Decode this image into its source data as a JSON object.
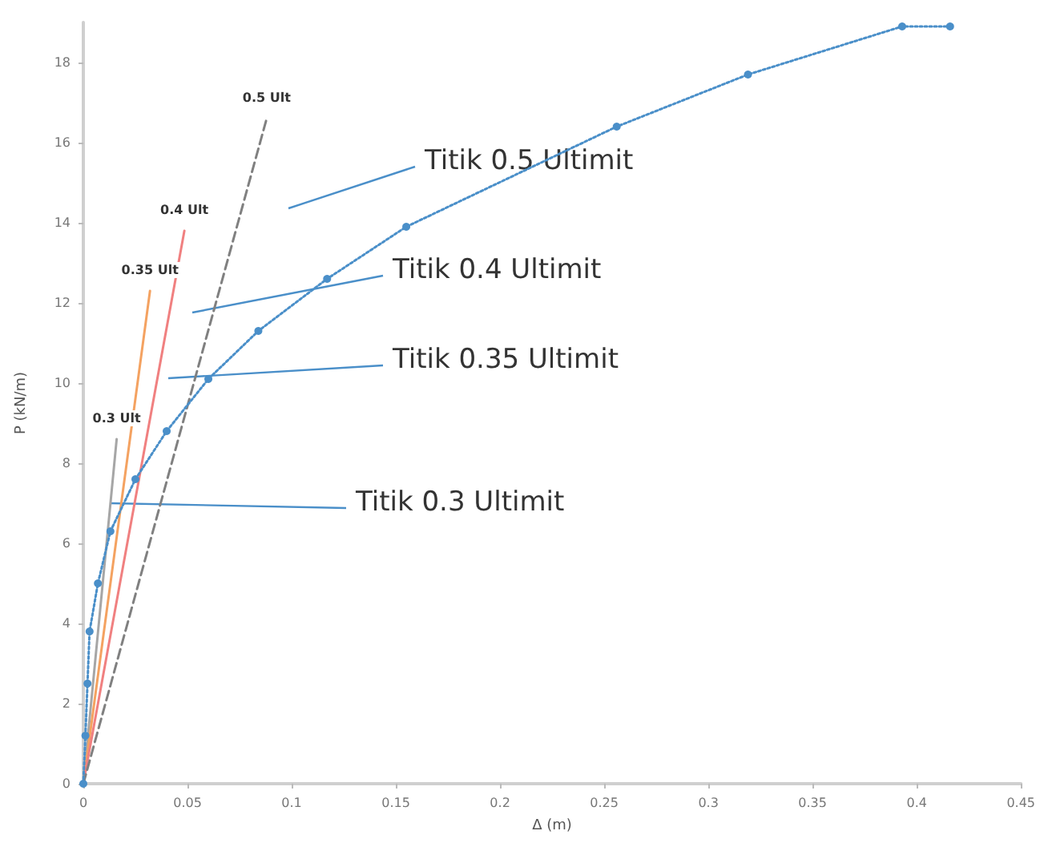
{
  "chart_data": {
    "type": "line",
    "xlabel": "Δ (m)",
    "ylabel": "P (kN/m)",
    "xlim": [
      0,
      0.45
    ],
    "xticks": [
      0,
      0.05,
      0.1,
      0.15,
      0.2,
      0.25,
      0.3,
      0.35,
      0.4,
      0.45
    ],
    "ylim": [
      0,
      19
    ],
    "yticks": [
      0,
      2,
      4,
      6,
      8,
      10,
      12,
      14,
      16,
      18
    ],
    "grid": false,
    "legend": false,
    "series": [
      {
        "color": "#4a8fc9",
        "marker": "circle",
        "line_style": "dotted",
        "x": [
          0,
          0.001,
          0.002,
          0.003,
          0.007,
          0.013,
          0.025,
          0.04,
          0.06,
          0.084,
          0.117,
          0.155,
          0.256,
          0.319,
          0.393,
          0.416
        ],
        "values": [
          0,
          1.2,
          2.5,
          3.8,
          5.0,
          6.3,
          7.6,
          8.8,
          10.1,
          11.3,
          12.6,
          13.9,
          16.4,
          17.7,
          18.9,
          18.9
        ]
      },
      {
        "name": "0.3 Ult",
        "color": "#a6a6a6",
        "marker": "none",
        "line_style": "solid",
        "x": [
          0,
          0.016
        ],
        "values": [
          0,
          8.6
        ]
      },
      {
        "name": "0.35 Ult",
        "color": "#f4a261",
        "marker": "none",
        "line_style": "solid",
        "x": [
          0,
          0.032
        ],
        "values": [
          0,
          12.3
        ]
      },
      {
        "name": "0.4 Ult",
        "color": "#f08080",
        "marker": "none",
        "line_style": "solid",
        "x": [
          0,
          0.0485
        ],
        "values": [
          0,
          13.8
        ]
      },
      {
        "name": "0.5 Ult",
        "color": "#808080",
        "marker": "none",
        "line_style": "dashed",
        "x": [
          0,
          0.088
        ],
        "values": [
          0,
          16.6
        ]
      }
    ],
    "annotations": [
      "Titik 0.5 Ultimit",
      "Titik 0.4 Ultimit",
      "Titik 0.35 Ultimit",
      {
        "text": "Titik 0.3 Ultimit",
        "x": 0.013,
        "y": 7.0
      }
    ]
  }
}
